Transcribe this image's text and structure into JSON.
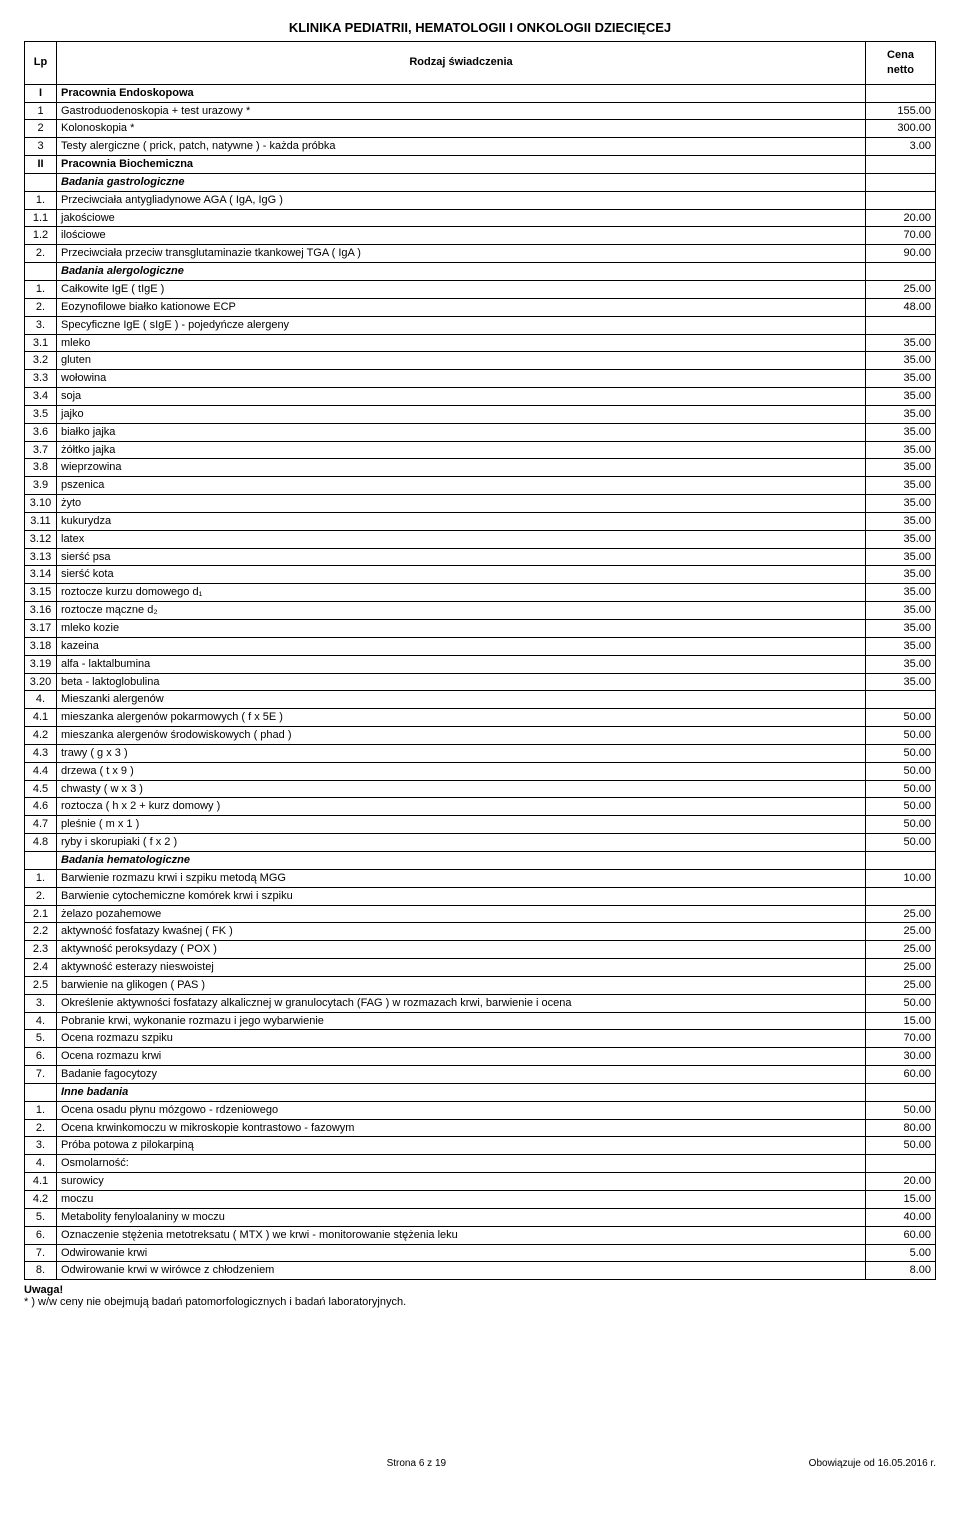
{
  "title": "KLINIKA PEDIATRII, HEMATOLOGII I ONKOLOGII DZIECIĘCEJ",
  "hdr": {
    "lp": "Lp",
    "desc": "Rodzaj świadczenia",
    "price": "Cena\nnetto"
  },
  "rows": [
    {
      "lp": "I",
      "desc": "Pracownia Endoskopowa",
      "price": "",
      "cls": "section"
    },
    {
      "lp": "1",
      "desc": "Gastroduodenoskopia + test urazowy *",
      "price": "155.00"
    },
    {
      "lp": "2",
      "desc": "Kolonoskopia *",
      "price": "300.00"
    },
    {
      "lp": "3",
      "desc": "Testy alergiczne ( prick, patch, natywne ) - każda próbka",
      "price": "3.00"
    },
    {
      "lp": "II",
      "desc": "Pracownia Biochemiczna",
      "price": "",
      "cls": "section"
    },
    {
      "lp": "",
      "desc": "Badania gastrologiczne",
      "price": "",
      "cls": "italic"
    },
    {
      "lp": "1.",
      "desc": "Przeciwciała antygliadynowe AGA ( IgA, IgG )",
      "price": ""
    },
    {
      "lp": "1.1",
      "desc": "jakościowe",
      "price": "20.00"
    },
    {
      "lp": "1.2",
      "desc": "ilościowe",
      "price": "70.00"
    },
    {
      "lp": "2.",
      "desc": "Przeciwciała przeciw transglutaminazie tkankowej TGA ( IgA )",
      "price": "90.00"
    },
    {
      "lp": "",
      "desc": "Badania alergologiczne",
      "price": "",
      "cls": "italic"
    },
    {
      "lp": "1.",
      "desc": "Całkowite IgE ( tIgE )",
      "price": "25.00"
    },
    {
      "lp": "2.",
      "desc": "Eozynofilowe białko kationowe ECP",
      "price": "48.00"
    },
    {
      "lp": "3.",
      "desc": "Specyficzne IgE ( sIgE ) - pojedyńcze alergeny",
      "price": ""
    },
    {
      "lp": "3.1",
      "desc": "mleko",
      "price": "35.00"
    },
    {
      "lp": "3.2",
      "desc": "gluten",
      "price": "35.00"
    },
    {
      "lp": "3.3",
      "desc": "wołowina",
      "price": "35.00"
    },
    {
      "lp": "3.4",
      "desc": "soja",
      "price": "35.00"
    },
    {
      "lp": "3.5",
      "desc": "jajko",
      "price": "35.00"
    },
    {
      "lp": "3.6",
      "desc": "białko jajka",
      "price": "35.00"
    },
    {
      "lp": "3.7",
      "desc": "żółtko jajka",
      "price": "35.00"
    },
    {
      "lp": "3.8",
      "desc": "wieprzowina",
      "price": "35.00"
    },
    {
      "lp": "3.9",
      "desc": "pszenica",
      "price": "35.00"
    },
    {
      "lp": "3.10",
      "desc": "żyto",
      "price": "35.00"
    },
    {
      "lp": "3.11",
      "desc": "kukurydza",
      "price": "35.00"
    },
    {
      "lp": "3.12",
      "desc": "latex",
      "price": "35.00"
    },
    {
      "lp": "3.13",
      "desc": "sierść psa",
      "price": "35.00"
    },
    {
      "lp": "3.14",
      "desc": "sierść kota",
      "price": "35.00"
    },
    {
      "lp": "3.15",
      "desc": "roztocze kurzu domowego d₁",
      "price": "35.00"
    },
    {
      "lp": "3.16",
      "desc": "roztocze mączne d₂",
      "price": "35.00"
    },
    {
      "lp": "3.17",
      "desc": "mleko kozie",
      "price": "35.00"
    },
    {
      "lp": "3.18",
      "desc": "kazeina",
      "price": "35.00"
    },
    {
      "lp": "3.19",
      "desc": "alfa - laktalbumina",
      "price": "35.00"
    },
    {
      "lp": "3.20",
      "desc": "beta - laktoglobulina",
      "price": "35.00"
    },
    {
      "lp": "4.",
      "desc": "Mieszanki alergenów",
      "price": ""
    },
    {
      "lp": "4.1",
      "desc": "mieszanka alergenów pokarmowych ( f x 5E )",
      "price": "50.00"
    },
    {
      "lp": "4.2",
      "desc": "mieszanka alergenów środowiskowych ( phad )",
      "price": "50.00"
    },
    {
      "lp": "4.3",
      "desc": "trawy ( g x 3 )",
      "price": "50.00"
    },
    {
      "lp": "4.4",
      "desc": "drzewa ( t x 9 )",
      "price": "50.00"
    },
    {
      "lp": "4.5",
      "desc": "chwasty ( w x 3 )",
      "price": "50.00"
    },
    {
      "lp": "4.6",
      "desc": "roztocza ( h x 2 + kurz domowy )",
      "price": "50.00"
    },
    {
      "lp": "4.7",
      "desc": "pleśnie ( m x 1 )",
      "price": "50.00"
    },
    {
      "lp": "4.8",
      "desc": "ryby i skorupiaki ( f x 2 )",
      "price": "50.00"
    },
    {
      "lp": "",
      "desc": "Badania hematologiczne",
      "price": "",
      "cls": "italic"
    },
    {
      "lp": "1.",
      "desc": "Barwienie rozmazu krwi i szpiku metodą MGG",
      "price": "10.00"
    },
    {
      "lp": "2.",
      "desc": "Barwienie cytochemiczne komórek krwi i szpiku",
      "price": ""
    },
    {
      "lp": "2.1",
      "desc": "żelazo pozahemowe",
      "price": "25.00"
    },
    {
      "lp": "2.2",
      "desc": "aktywność fosfatazy kwaśnej ( FK )",
      "price": "25.00"
    },
    {
      "lp": "2.3",
      "desc": "aktywność peroksydazy ( POX )",
      "price": "25.00"
    },
    {
      "lp": "2.4",
      "desc": "aktywność esterazy nieswoistej",
      "price": "25.00"
    },
    {
      "lp": "2.5",
      "desc": "barwienie na glikogen ( PAS )",
      "price": "25.00"
    },
    {
      "lp": "3.",
      "desc": "Określenie aktywności fosfatazy alkalicznej w granulocytach (FAG ) w rozmazach krwi, barwienie i ocena",
      "price": "50.00"
    },
    {
      "lp": "4.",
      "desc": "Pobranie krwi, wykonanie rozmazu i jego wybarwienie",
      "price": "15.00"
    },
    {
      "lp": "5.",
      "desc": "Ocena rozmazu szpiku",
      "price": "70.00"
    },
    {
      "lp": "6.",
      "desc": "Ocena rozmazu krwi",
      "price": "30.00"
    },
    {
      "lp": "7.",
      "desc": "Badanie fagocytozy",
      "price": "60.00"
    },
    {
      "lp": "",
      "desc": "Inne badania",
      "price": "",
      "cls": "italic"
    },
    {
      "lp": "1.",
      "desc": "Ocena osadu płynu mózgowo - rdzeniowego",
      "price": "50.00"
    },
    {
      "lp": "2.",
      "desc": "Ocena krwinkomoczu w mikroskopie kontrastowo - fazowym",
      "price": "80.00"
    },
    {
      "lp": "3.",
      "desc": "Próba potowa z pilokarpiną",
      "price": "50.00"
    },
    {
      "lp": "4.",
      "desc": "Osmolarność:",
      "price": ""
    },
    {
      "lp": "4.1",
      "desc": "surowicy",
      "price": "20.00"
    },
    {
      "lp": "4.2",
      "desc": "moczu",
      "price": "15.00"
    },
    {
      "lp": "5.",
      "desc": "Metabolity fenyloalaniny w moczu",
      "price": "40.00"
    },
    {
      "lp": "6.",
      "desc": "Oznaczenie stężenia metotreksatu ( MTX ) we krwi - monitorowanie stężenia leku",
      "price": "60.00"
    },
    {
      "lp": "7.",
      "desc": "Odwirowanie krwi",
      "price": "5.00"
    },
    {
      "lp": "8.",
      "desc": "Odwirowanie krwi w wirówce z chłodzeniem",
      "price": "8.00"
    }
  ],
  "foot": {
    "uwaga": "Uwaga!",
    "note": "* ) w/w ceny nie obejmują badań patomorfologicznych i badań laboratoryjnych."
  },
  "pagefoot": {
    "center": "Strona 6 z 19",
    "right": "Obowiązuje od 16.05.2016 r."
  }
}
